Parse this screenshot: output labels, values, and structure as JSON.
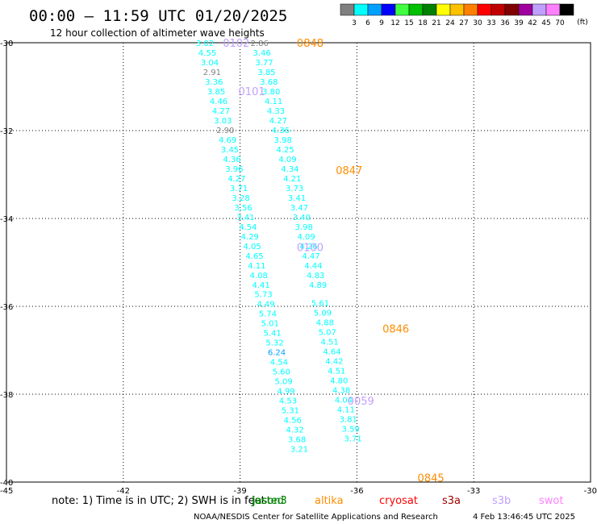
{
  "header": {
    "title": "00:00 – 11:59 UTC 01/20/2025",
    "subtitle": "12 hour collection of altimeter wave heights"
  },
  "colorbar": {
    "unit_label": "(ft)",
    "labels": [
      "3",
      "6",
      "9",
      "12",
      "15",
      "18",
      "21",
      "24",
      "27",
      "30",
      "33",
      "36",
      "39",
      "42",
      "45",
      "70"
    ],
    "colors": [
      "#808080",
      "#00ffff",
      "#00a0ff",
      "#0000ff",
      "#40ff40",
      "#00c000",
      "#008000",
      "#ffff00",
      "#ffc000",
      "#ff8000",
      "#ff0000",
      "#c00000",
      "#800000",
      "#a000a0",
      "#c0a0ff",
      "#ff80ff",
      "#000000"
    ]
  },
  "footer": {
    "note": "note:  1) Time is in UTC; 2) SWH is in feet",
    "credit": "NOAA/NESDIS Center for Satellite Applications and Research",
    "timestamp": "4 Feb 13:46:45 UTC 2025",
    "legend": [
      {
        "name": "jason3",
        "color": "#008000"
      },
      {
        "name": "altika",
        "color": "#ff8c00"
      },
      {
        "name": "cryosat",
        "color": "#ff0000"
      },
      {
        "name": "s3a",
        "color": "#a00000"
      },
      {
        "name": "s3b",
        "color": "#c0a0ff"
      },
      {
        "name": "swot",
        "color": "#ff80ff"
      }
    ],
    "legend_overlap_text": "Jasted"
  },
  "chart_data": {
    "type": "scatter",
    "x_ticks": [
      "-45",
      "-42",
      "-39",
      "-36",
      "-33",
      "-30"
    ],
    "y_ticks": [
      "-30",
      "-32",
      "-34",
      "-36",
      "-38",
      "-40"
    ],
    "xlim": [
      -45,
      -30
    ],
    "ylim": [
      -40,
      -30
    ],
    "grid": true,
    "time_labels": [
      {
        "text": "0102",
        "lon": -39.1,
        "lat": -30.0,
        "color": "#c0a0ff"
      },
      {
        "text": "0101",
        "lon": -38.7,
        "lat": -31.1,
        "color": "#c0a0ff"
      },
      {
        "text": "0100",
        "lon": -37.2,
        "lat": -34.65,
        "color": "#c0a0ff"
      },
      {
        "text": "0059",
        "lon": -35.9,
        "lat": -38.15,
        "color": "#c0a0ff"
      },
      {
        "text": "0848",
        "lon": -37.2,
        "lat": -30.0,
        "color": "#ff8c00"
      },
      {
        "text": "0847",
        "lon": -36.2,
        "lat": -32.9,
        "color": "#ff8c00"
      },
      {
        "text": "0846",
        "lon": -35.0,
        "lat": -36.5,
        "color": "#ff8c00"
      },
      {
        "text": "0845",
        "lon": -34.1,
        "lat": -39.9,
        "color": "#ff8c00"
      }
    ],
    "series": [
      {
        "points": [
          {
            "lon": -39.9,
            "lat": -30.0,
            "v": "3.02"
          },
          {
            "lon": -39.84,
            "lat": -30.22,
            "v": "4.55"
          },
          {
            "lon": -39.78,
            "lat": -30.44,
            "v": "3.04"
          },
          {
            "lon": -39.72,
            "lat": -30.66,
            "v": "2.91"
          },
          {
            "lon": -39.67,
            "lat": -30.88,
            "v": "3.36"
          },
          {
            "lon": -39.61,
            "lat": -31.1,
            "v": "3.85"
          },
          {
            "lon": -39.55,
            "lat": -31.32,
            "v": "4.46"
          },
          {
            "lon": -39.49,
            "lat": -31.54,
            "v": "4.27"
          },
          {
            "lon": -39.44,
            "lat": -31.76,
            "v": "3.03"
          },
          {
            "lon": -39.38,
            "lat": -31.98,
            "v": "2.90"
          },
          {
            "lon": -39.32,
            "lat": -32.2,
            "v": "4.69"
          },
          {
            "lon": -39.26,
            "lat": -32.42,
            "v": "3.45"
          },
          {
            "lon": -39.21,
            "lat": -32.64,
            "v": "4.36"
          },
          {
            "lon": -39.15,
            "lat": -32.86,
            "v": "3.96"
          },
          {
            "lon": -39.09,
            "lat": -33.08,
            "v": "4.27"
          },
          {
            "lon": -39.03,
            "lat": -33.3,
            "v": "3.71"
          },
          {
            "lon": -38.98,
            "lat": -33.52,
            "v": "3.28"
          },
          {
            "lon": -38.92,
            "lat": -33.74,
            "v": "3.56"
          },
          {
            "lon": -38.86,
            "lat": -33.96,
            "v": "3.41"
          },
          {
            "lon": -38.8,
            "lat": -34.18,
            "v": "4.54"
          },
          {
            "lon": -38.75,
            "lat": -34.4,
            "v": "4.29"
          },
          {
            "lon": -38.69,
            "lat": -34.62,
            "v": "4.05"
          },
          {
            "lon": -38.63,
            "lat": -34.84,
            "v": "4.65"
          },
          {
            "lon": -38.57,
            "lat": -35.06,
            "v": "4.11"
          },
          {
            "lon": -38.52,
            "lat": -35.28,
            "v": "4.08"
          },
          {
            "lon": -38.46,
            "lat": -35.5,
            "v": "4.41"
          },
          {
            "lon": -38.4,
            "lat": -35.72,
            "v": "5.73"
          },
          {
            "lon": -38.34,
            "lat": -35.94,
            "v": "4.49"
          },
          {
            "lon": -38.29,
            "lat": -36.16,
            "v": "5.74"
          },
          {
            "lon": -38.23,
            "lat": -36.38,
            "v": "5.01"
          },
          {
            "lon": -38.17,
            "lat": -36.6,
            "v": "5.41"
          },
          {
            "lon": -38.11,
            "lat": -36.82,
            "v": "5.32"
          },
          {
            "lon": -38.06,
            "lat": -37.04,
            "v": "6.24"
          },
          {
            "lon": -38.0,
            "lat": -37.26,
            "v": "4.54"
          },
          {
            "lon": -37.94,
            "lat": -37.48,
            "v": "5.60"
          },
          {
            "lon": -37.88,
            "lat": -37.7,
            "v": "5.09"
          },
          {
            "lon": -37.82,
            "lat": -37.92,
            "v": "4.99"
          },
          {
            "lon": -37.77,
            "lat": -38.14,
            "v": "4.53"
          },
          {
            "lon": -37.71,
            "lat": -38.36,
            "v": "5.31"
          },
          {
            "lon": -37.65,
            "lat": -38.58,
            "v": "4.56"
          },
          {
            "lon": -37.59,
            "lat": -38.8,
            "v": "4.32"
          },
          {
            "lon": -37.54,
            "lat": -39.02,
            "v": "3.68"
          },
          {
            "lon": -37.48,
            "lat": -39.24,
            "v": "3.21"
          }
        ]
      },
      {
        "points": [
          {
            "lon": -38.5,
            "lat": -30.0,
            "v": "2.86"
          },
          {
            "lon": -38.44,
            "lat": -30.22,
            "v": "3.46"
          },
          {
            "lon": -38.38,
            "lat": -30.44,
            "v": "3.77"
          },
          {
            "lon": -38.32,
            "lat": -30.66,
            "v": "3.85"
          },
          {
            "lon": -38.26,
            "lat": -30.88,
            "v": "3.68"
          },
          {
            "lon": -38.2,
            "lat": -31.1,
            "v": "3.80"
          },
          {
            "lon": -38.14,
            "lat": -31.32,
            "v": "4.11"
          },
          {
            "lon": -38.08,
            "lat": -31.54,
            "v": "4.33"
          },
          {
            "lon": -38.02,
            "lat": -31.76,
            "v": "4.27"
          },
          {
            "lon": -37.96,
            "lat": -31.98,
            "v": "4.36"
          },
          {
            "lon": -37.9,
            "lat": -32.2,
            "v": "3.98"
          },
          {
            "lon": -37.84,
            "lat": -32.42,
            "v": "4.25"
          },
          {
            "lon": -37.78,
            "lat": -32.64,
            "v": "4.09"
          },
          {
            "lon": -37.72,
            "lat": -32.86,
            "v": "4.34"
          },
          {
            "lon": -37.66,
            "lat": -33.08,
            "v": "4.21"
          },
          {
            "lon": -37.6,
            "lat": -33.3,
            "v": "3.73"
          },
          {
            "lon": -37.54,
            "lat": -33.52,
            "v": "3.41"
          },
          {
            "lon": -37.48,
            "lat": -33.74,
            "v": "3.47"
          },
          {
            "lon": -37.42,
            "lat": -33.96,
            "v": "3.40"
          },
          {
            "lon": -37.36,
            "lat": -34.18,
            "v": "3.98"
          },
          {
            "lon": -37.3,
            "lat": -34.4,
            "v": "4.09"
          },
          {
            "lon": -37.24,
            "lat": -34.62,
            "v": "4.26"
          },
          {
            "lon": -37.18,
            "lat": -34.84,
            "v": "4.47"
          },
          {
            "lon": -37.12,
            "lat": -35.06,
            "v": "4.44"
          },
          {
            "lon": -37.06,
            "lat": -35.28,
            "v": "4.83"
          },
          {
            "lon": -37.0,
            "lat": -35.5,
            "v": "4.89"
          },
          {
            "lon": -36.94,
            "lat": -35.92,
            "v": "5.61"
          },
          {
            "lon": -36.88,
            "lat": -36.14,
            "v": "5.09"
          },
          {
            "lon": -36.82,
            "lat": -36.36,
            "v": "4.88"
          },
          {
            "lon": -36.76,
            "lat": -36.58,
            "v": "5.07"
          },
          {
            "lon": -36.7,
            "lat": -36.8,
            "v": "4.51"
          },
          {
            "lon": -36.64,
            "lat": -37.02,
            "v": "4.64"
          },
          {
            "lon": -36.58,
            "lat": -37.24,
            "v": "4.42"
          },
          {
            "lon": -36.52,
            "lat": -37.46,
            "v": "4.51"
          },
          {
            "lon": -36.46,
            "lat": -37.68,
            "v": "4.80"
          },
          {
            "lon": -36.4,
            "lat": -37.9,
            "v": "4.38"
          },
          {
            "lon": -36.34,
            "lat": -38.12,
            "v": "4.04"
          },
          {
            "lon": -36.28,
            "lat": -38.34,
            "v": "4.11"
          },
          {
            "lon": -36.22,
            "lat": -38.56,
            "v": "3.81"
          },
          {
            "lon": -36.16,
            "lat": -38.78,
            "v": "3.59"
          },
          {
            "lon": -36.1,
            "lat": -39.0,
            "v": "3.71"
          }
        ]
      }
    ]
  }
}
